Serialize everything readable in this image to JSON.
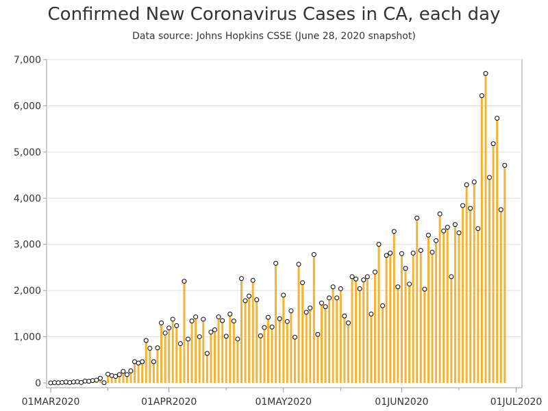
{
  "chart_data": {
    "type": "bar",
    "title": "Confirmed New Coronavirus Cases in CA, each day",
    "subtitle": "Data source: Johns Hopkins CSSE (June 28, 2020 snapshot)",
    "xlabel": "",
    "ylabel": "",
    "x_start": "2020-03-01",
    "x_ticks": [
      "01MAR2020",
      "01APR2020",
      "01MAY2020",
      "01JUN2020",
      "01JUL2020"
    ],
    "y_ticks": [
      "0",
      "1,000",
      "2,000",
      "3,000",
      "4,000",
      "5,000",
      "6,000",
      "7,000"
    ],
    "ylim": [
      0,
      7000
    ],
    "grid": true,
    "colors": {
      "bar": "#F5B335",
      "marker_fill": "#ffffff",
      "marker_stroke": "#000000",
      "grid": "#dddddd",
      "axis": "#999999"
    },
    "values": [
      0,
      5,
      3,
      10,
      18,
      8,
      20,
      25,
      10,
      40,
      35,
      50,
      60,
      100,
      5,
      190,
      160,
      140,
      180,
      250,
      180,
      260,
      460,
      430,
      460,
      920,
      750,
      460,
      760,
      1300,
      1080,
      1190,
      1380,
      1240,
      850,
      2200,
      950,
      1340,
      1430,
      1000,
      1380,
      640,
      1100,
      1150,
      1430,
      1350,
      1010,
      1490,
      1340,
      950,
      2260,
      1780,
      1880,
      2220,
      1800,
      1020,
      1200,
      1420,
      1210,
      2590,
      1390,
      1900,
      1330,
      1560,
      990,
      2570,
      2170,
      1530,
      1620,
      2780,
      1050,
      1730,
      1650,
      1840,
      2080,
      1840,
      2040,
      1450,
      1300,
      2300,
      2250,
      2040,
      2230,
      2300,
      1490,
      2400,
      3000,
      1670,
      2760,
      2810,
      3280,
      2080,
      2800,
      2480,
      2140,
      2810,
      3570,
      2870,
      2030,
      3200,
      2830,
      3080,
      3660,
      3290,
      3370,
      2300,
      3430,
      3250,
      3840,
      4290,
      3780,
      4350,
      3340,
      6220,
      6700,
      4450,
      5180,
      5730,
      3750,
      4710
    ]
  }
}
